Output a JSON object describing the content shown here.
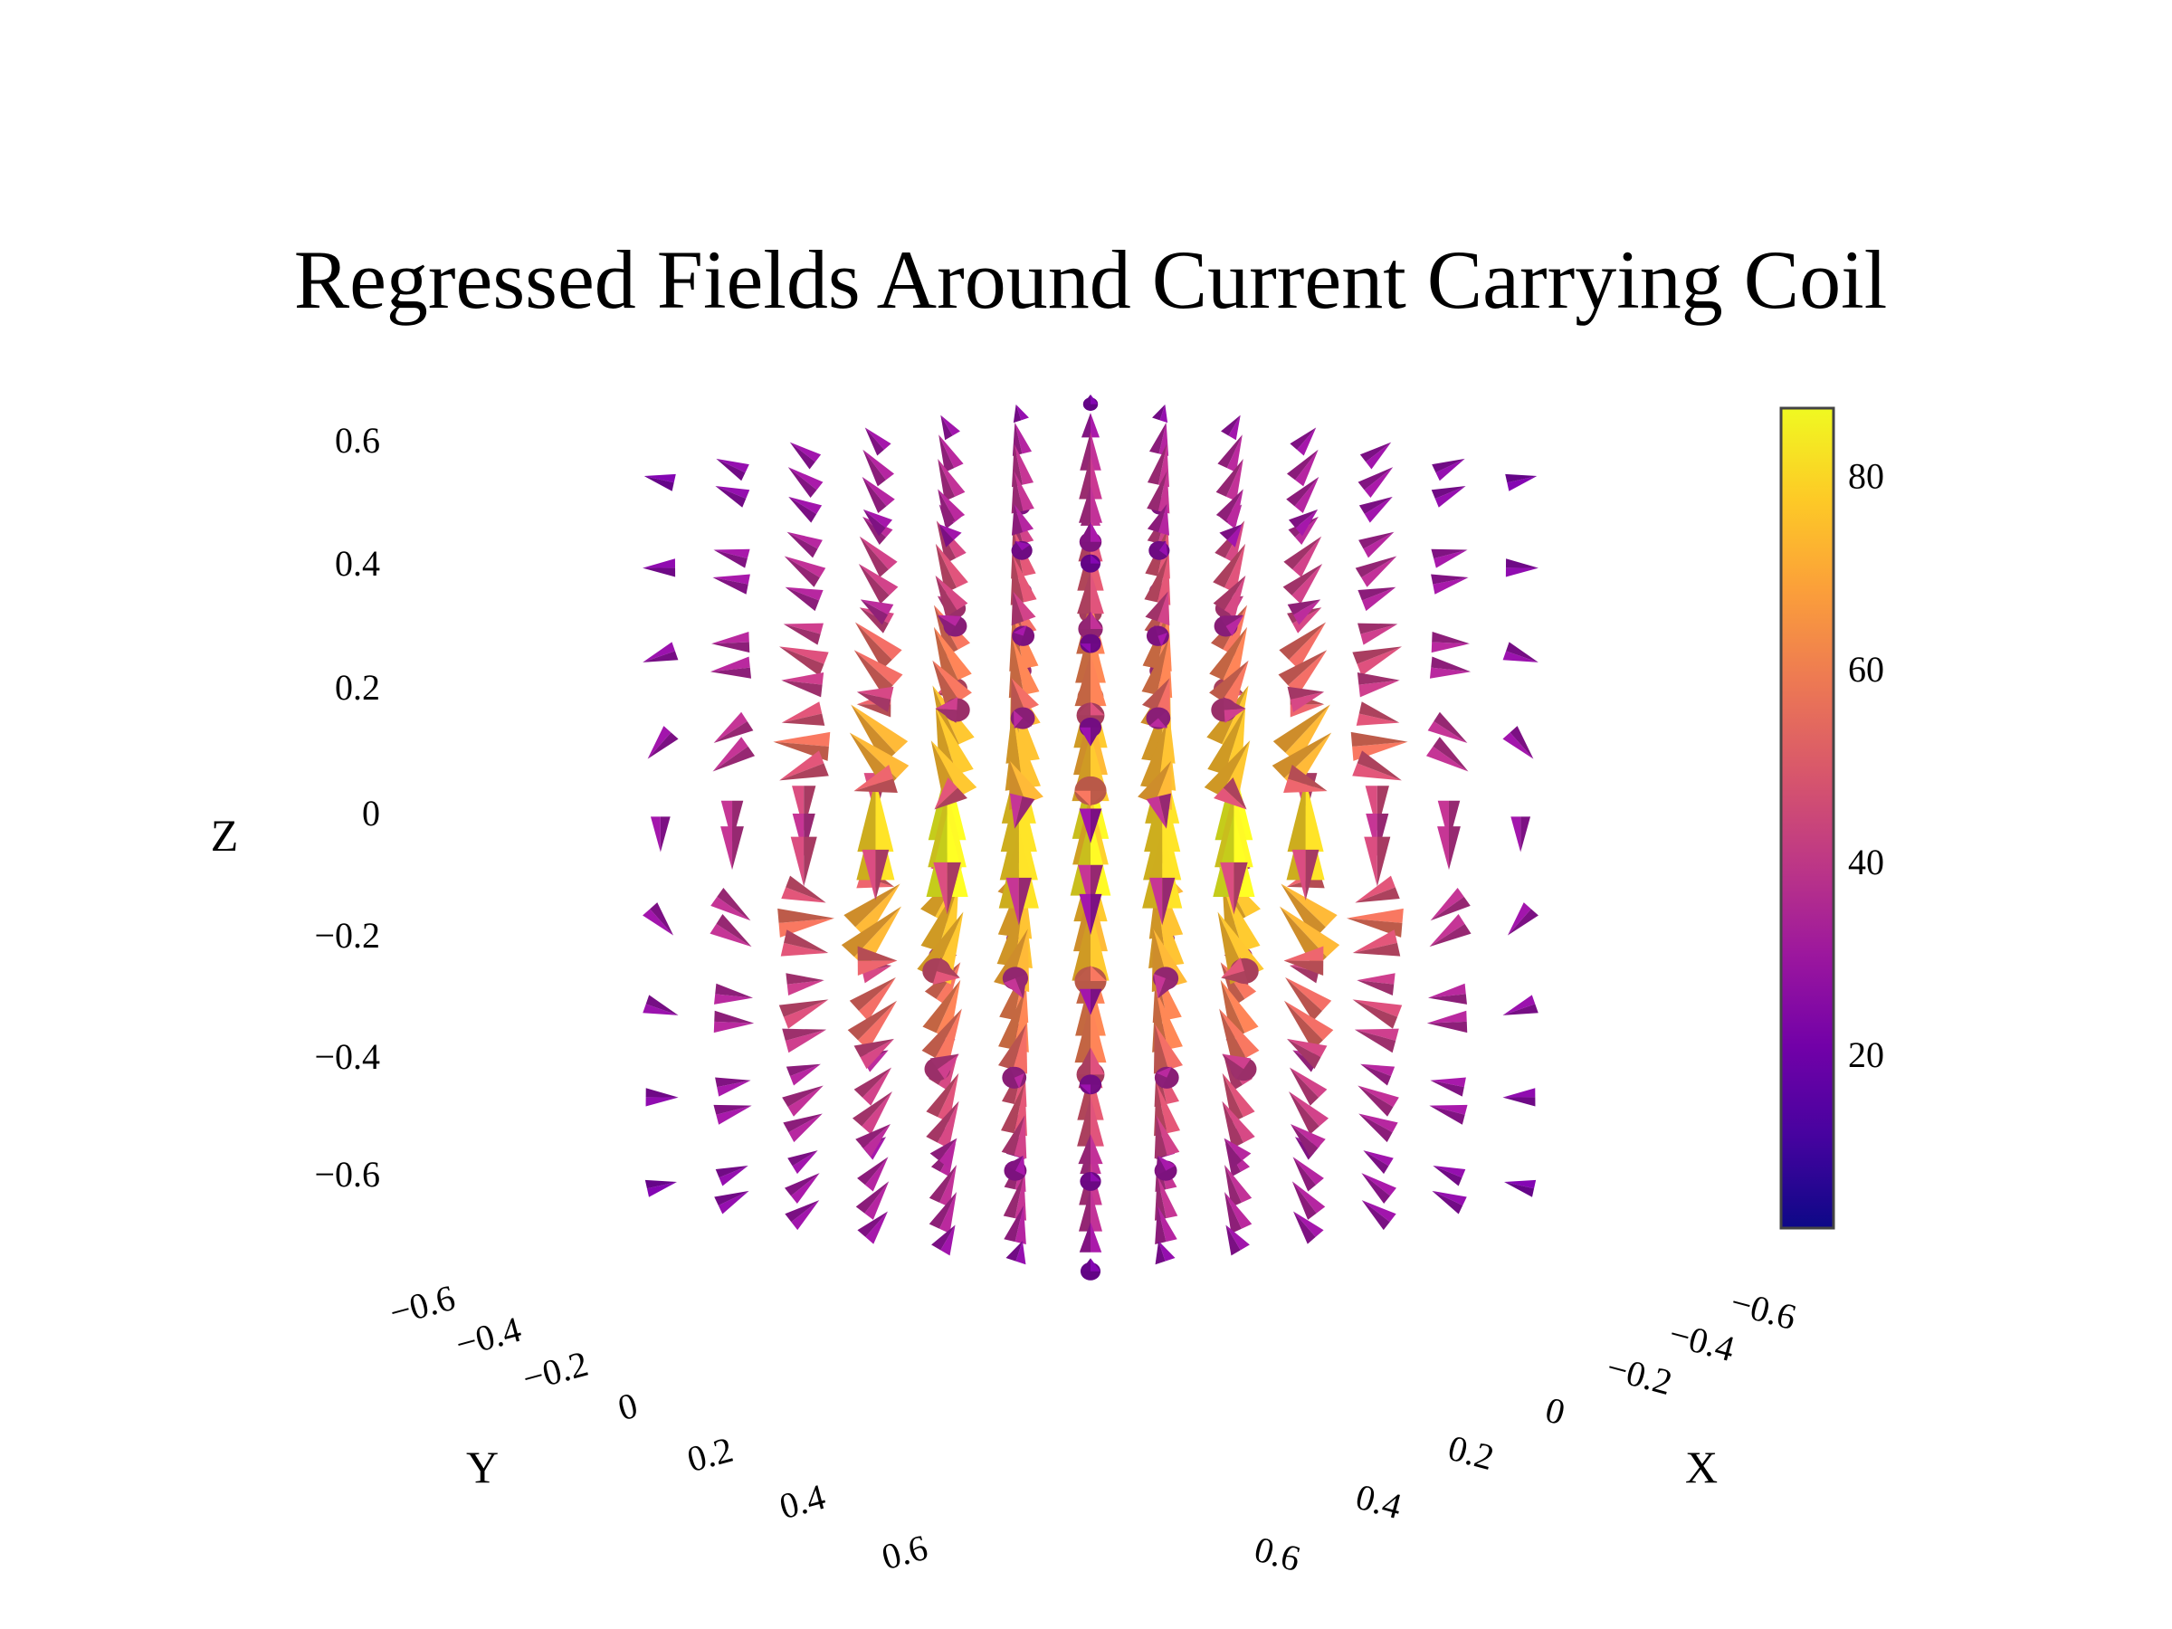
{
  "chart_data": {
    "type": "cone",
    "title": "Regressed Fields Around Current Carrying Coil",
    "scene": {
      "x": {
        "title": "X",
        "ticks": [
          "−0.6",
          "−0.4",
          "−0.2",
          "0",
          "0.2",
          "0.4",
          "0.6"
        ],
        "range": [
          -0.6,
          0.6
        ]
      },
      "y": {
        "title": "Y",
        "ticks": [
          "−0.6",
          "−0.4",
          "−0.2",
          "0",
          "0.2",
          "0.4",
          "0.6"
        ],
        "range": [
          -0.6,
          0.6
        ]
      },
      "z": {
        "title": "Z",
        "ticks": [
          "0.6",
          "0.4",
          "0.2",
          "0",
          "−0.2",
          "−0.4",
          "−0.6"
        ],
        "range": [
          -0.6,
          0.6
        ]
      }
    },
    "grid": {
      "x": [
        -0.6,
        -0.4,
        -0.2,
        0,
        0.2,
        0.4,
        0.6
      ],
      "y": [
        -0.6,
        -0.4,
        -0.2,
        0,
        0.2,
        0.4,
        0.6
      ],
      "z": [
        -0.6,
        -0.45,
        -0.3,
        -0.15,
        0,
        0.15,
        0.3,
        0.45,
        0.6
      ]
    },
    "field_model": "circular current loop of radius 0.5 in the z = 0 plane, field magnitude plotted as cone color and size",
    "colorscale": {
      "name": "plasma",
      "min": 2,
      "max": 87,
      "ticks": [
        20,
        40,
        60,
        80
      ],
      "tick_labels": [
        "20",
        "40",
        "60",
        "80"
      ],
      "stops": [
        "#0d0887",
        "#46039f",
        "#7201a8",
        "#9c179e",
        "#bd3786",
        "#d8576b",
        "#ed7953",
        "#fb9f3a",
        "#fdca26",
        "#f0f921"
      ]
    },
    "colors": {
      "colorbar_border": "#444444",
      "background": "#ffffff"
    }
  }
}
